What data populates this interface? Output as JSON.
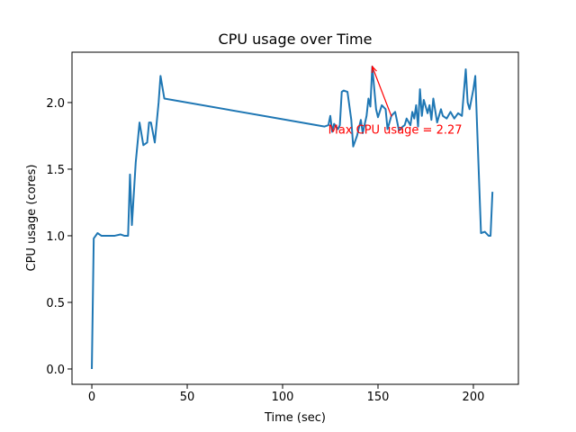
{
  "chart_data": {
    "type": "line",
    "title": "CPU usage over Time",
    "x_label": "Time (sec)",
    "y_label": "CPU usage (cores)",
    "color": "#1f77b4",
    "x": [
      0,
      1,
      3,
      5,
      8,
      12,
      15,
      17,
      19,
      20,
      21,
      23,
      25,
      27,
      29,
      30,
      31,
      33,
      35,
      36,
      38,
      122,
      124,
      125,
      126,
      127,
      129,
      130,
      131,
      132,
      134,
      136,
      137,
      139,
      141,
      142,
      144,
      145,
      146,
      147,
      149,
      150,
      152,
      154,
      155,
      157,
      159,
      161,
      163,
      164,
      165,
      167,
      168,
      169,
      170,
      171,
      172,
      173,
      174,
      176,
      177,
      178,
      179,
      181,
      183,
      184,
      186,
      188,
      190,
      192,
      194,
      196,
      197,
      198,
      200,
      201,
      202,
      204,
      206,
      208,
      209,
      210
    ],
    "values": [
      0.0,
      0.98,
      1.02,
      1.0,
      1.0,
      1.0,
      1.01,
      1.0,
      1.0,
      1.46,
      1.08,
      1.55,
      1.85,
      1.68,
      1.7,
      1.85,
      1.85,
      1.7,
      2.0,
      2.2,
      2.03,
      1.82,
      1.83,
      1.9,
      1.78,
      1.84,
      1.8,
      1.83,
      2.08,
      2.09,
      2.08,
      1.87,
      1.67,
      1.75,
      1.87,
      1.77,
      1.9,
      2.03,
      1.97,
      2.27,
      1.95,
      1.89,
      1.98,
      1.95,
      1.8,
      1.9,
      1.93,
      1.79,
      1.82,
      1.83,
      1.88,
      1.83,
      1.93,
      1.88,
      1.98,
      1.82,
      2.1,
      1.9,
      2.02,
      1.92,
      1.98,
      1.87,
      2.03,
      1.85,
      1.95,
      1.9,
      1.88,
      1.93,
      1.88,
      1.92,
      1.9,
      2.25,
      2.0,
      1.95,
      2.1,
      2.2,
      1.8,
      1.02,
      1.03,
      1.0,
      1.0,
      1.33
    ],
    "xlim": [
      -10.4,
      223.6
    ],
    "xticks": [
      0,
      50,
      100,
      150,
      200
    ],
    "ylim": [
      -0.115,
      2.378
    ],
    "yticks": [
      {
        "value": 0,
        "label": "0.0"
      },
      0.5,
      {
        "value": 1,
        "label": "1.0"
      },
      1.5,
      {
        "value": 2,
        "label": "2.0"
      }
    ],
    "annotation": {
      "text": "Max CPU usage = 2.27",
      "x": 147,
      "y": 2.27,
      "text_x": 159,
      "text_y": 1.8,
      "color": "red"
    }
  }
}
